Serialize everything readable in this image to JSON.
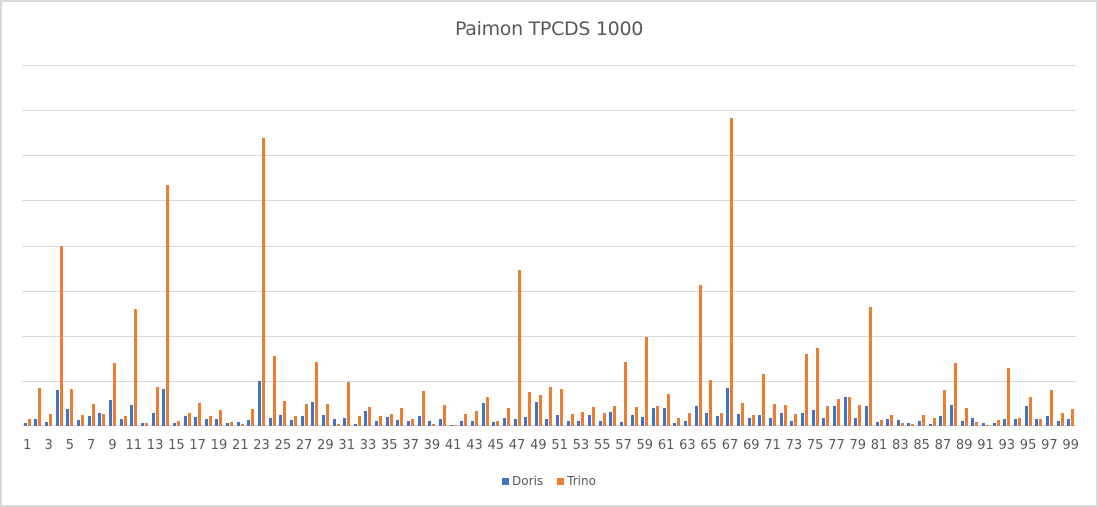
{
  "chart_data": {
    "type": "bar",
    "title": "Paimon TPCDS 1000",
    "xlabel": "",
    "ylabel": "",
    "ylim": [
      0,
      8
    ],
    "y_gridlines": 8,
    "y_tick_labels_visible": false,
    "grid": true,
    "legend_position": "bottom",
    "categories": [
      1,
      2,
      3,
      4,
      5,
      6,
      7,
      8,
      9,
      10,
      11,
      12,
      13,
      14,
      15,
      16,
      17,
      18,
      19,
      20,
      21,
      22,
      23,
      24,
      25,
      26,
      27,
      28,
      29,
      30,
      31,
      32,
      33,
      34,
      35,
      36,
      37,
      38,
      39,
      40,
      41,
      42,
      43,
      44,
      45,
      46,
      47,
      48,
      49,
      50,
      51,
      52,
      53,
      54,
      55,
      56,
      57,
      58,
      59,
      60,
      61,
      62,
      63,
      64,
      65,
      66,
      67,
      68,
      69,
      70,
      71,
      72,
      73,
      74,
      75,
      76,
      77,
      78,
      79,
      80,
      81,
      82,
      83,
      84,
      85,
      86,
      87,
      88,
      89,
      90,
      91,
      92,
      93,
      94,
      95,
      96,
      97,
      98,
      99
    ],
    "x_tick_labels": [
      "1",
      "3",
      "5",
      "7",
      "9",
      "11",
      "13",
      "15",
      "17",
      "19",
      "21",
      "23",
      "25",
      "27",
      "29",
      "31",
      "33",
      "35",
      "37",
      "39",
      "41",
      "43",
      "45",
      "47",
      "49",
      "51",
      "53",
      "55",
      "57",
      "59",
      "61",
      "63",
      "65",
      "67",
      "69",
      "71",
      "73",
      "75",
      "77",
      "79",
      "81",
      "83",
      "85",
      "87",
      "89",
      "91",
      "93",
      "95",
      "97",
      "99"
    ],
    "series": [
      {
        "name": "Doris",
        "color": "#4472c4",
        "values": [
          0.07,
          0.15,
          0.1,
          0.8,
          0.38,
          0.13,
          0.22,
          0.29,
          0.57,
          0.16,
          0.47,
          0.07,
          0.29,
          0.82,
          0.07,
          0.22,
          0.2,
          0.16,
          0.16,
          0.07,
          0.09,
          0.13,
          1.0,
          0.18,
          0.24,
          0.13,
          0.22,
          0.53,
          0.24,
          0.16,
          0.18,
          0.04,
          0.33,
          0.11,
          0.2,
          0.13,
          0.11,
          0.22,
          0.11,
          0.15,
          0.02,
          0.11,
          0.11,
          0.5,
          0.09,
          0.18,
          0.16,
          0.2,
          0.53,
          0.16,
          0.24,
          0.11,
          0.11,
          0.24,
          0.11,
          0.31,
          0.09,
          0.24,
          0.2,
          0.4,
          0.4,
          0.07,
          0.11,
          0.44,
          0.29,
          0.22,
          0.84,
          0.27,
          0.18,
          0.24,
          0.18,
          0.29,
          0.11,
          0.29,
          0.36,
          0.18,
          0.44,
          0.64,
          0.18,
          0.44,
          0.09,
          0.16,
          0.13,
          0.07,
          0.11,
          0.04,
          0.22,
          0.47,
          0.11,
          0.18,
          0.07,
          0.07,
          0.16,
          0.16,
          0.44,
          0.16,
          0.22,
          0.11,
          0.16
        ]
      },
      {
        "name": "Trino",
        "color": "#ed7d31",
        "values": [
          0.15,
          0.84,
          0.27,
          4.0,
          0.82,
          0.24,
          0.49,
          0.27,
          1.4,
          0.22,
          2.6,
          0.07,
          0.87,
          5.33,
          0.11,
          0.29,
          0.51,
          0.22,
          0.36,
          0.1,
          0.04,
          0.38,
          6.38,
          1.56,
          0.56,
          0.22,
          0.49,
          1.42,
          0.49,
          0.04,
          0.98,
          0.22,
          0.42,
          0.22,
          0.27,
          0.4,
          0.15,
          0.78,
          0.04,
          0.47,
          0.0,
          0.27,
          0.33,
          0.64,
          0.11,
          0.4,
          3.45,
          0.76,
          0.69,
          0.87,
          0.82,
          0.27,
          0.31,
          0.42,
          0.29,
          0.44,
          1.42,
          0.42,
          1.98,
          0.44,
          0.71,
          0.18,
          0.29,
          3.13,
          1.02,
          0.29,
          6.82,
          0.51,
          0.24,
          1.16,
          0.49,
          0.47,
          0.27,
          1.6,
          1.73,
          0.44,
          0.6,
          0.64,
          0.47,
          2.64,
          0.13,
          0.24,
          0.07,
          0.04,
          0.24,
          0.18,
          0.8,
          1.4,
          0.4,
          0.09,
          0.02,
          0.13,
          1.29,
          0.18,
          0.64,
          0.16,
          0.8,
          0.29,
          0.38
        ]
      }
    ]
  },
  "legend": {
    "items": [
      {
        "label": "Doris",
        "color": "#4472c4"
      },
      {
        "label": "Trino",
        "color": "#ed7d31"
      }
    ]
  }
}
